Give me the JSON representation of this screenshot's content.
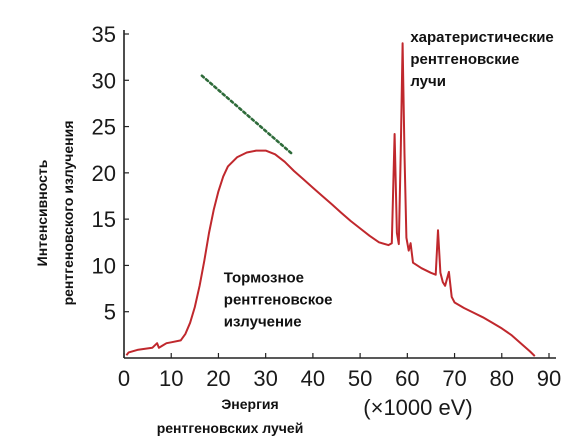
{
  "chart_data": {
    "type": "line",
    "xlabel_lines": [
      "Энергия",
      "рентгеновских лучей"
    ],
    "x_unit": "(×1000 eV)",
    "ylabel_lines": [
      "Интенсивность",
      "рентгеновского излучения"
    ],
    "xlim": [
      0,
      90
    ],
    "ylim": [
      0,
      35
    ],
    "x_ticks": [
      0,
      10,
      20,
      30,
      40,
      50,
      60,
      70,
      80,
      90
    ],
    "y_ticks": [
      5,
      10,
      15,
      20,
      25,
      30,
      35
    ],
    "grid": false,
    "colors": {
      "curve": "#c0282d",
      "dotted_line": "#2e6b3a",
      "axis": "#222222"
    },
    "annotations": [
      {
        "lines": [
          "харатеристические",
          "рентгеновские",
          "лучи"
        ],
        "anchor_x": 60,
        "anchor_y": 35
      },
      {
        "lines": [
          "Тормозное",
          "рентгеновское",
          "излучение"
        ],
        "anchor_x": 20.5,
        "anchor_y": 9
      }
    ],
    "series": [
      {
        "points": [
          [
            0.5,
            0.3
          ],
          [
            1,
            0.6
          ],
          [
            3,
            0.9
          ],
          [
            6,
            1.1
          ],
          [
            7,
            1.6
          ],
          [
            7.4,
            1.1
          ],
          [
            8,
            1.3
          ],
          [
            9,
            1.6
          ],
          [
            10,
            1.7
          ],
          [
            12,
            1.9
          ],
          [
            13,
            2.6
          ],
          [
            14,
            3.8
          ],
          [
            15,
            5.5
          ],
          [
            16,
            7.8
          ],
          [
            17,
            10.5
          ],
          [
            18,
            13.5
          ],
          [
            19,
            16.0
          ],
          [
            20,
            18.0
          ],
          [
            21,
            19.6
          ],
          [
            22,
            20.7
          ],
          [
            24,
            21.7
          ],
          [
            26,
            22.2
          ],
          [
            28,
            22.4
          ],
          [
            30,
            22.4
          ],
          [
            32,
            22.0
          ],
          [
            34,
            21.2
          ],
          [
            36,
            20.2
          ],
          [
            38,
            19.3
          ],
          [
            40,
            18.4
          ],
          [
            42,
            17.5
          ],
          [
            44,
            16.6
          ],
          [
            46,
            15.7
          ],
          [
            48,
            14.8
          ],
          [
            50,
            14.0
          ],
          [
            52,
            13.2
          ],
          [
            54,
            12.5
          ],
          [
            56,
            12.2
          ],
          [
            56.7,
            12.4
          ],
          [
            57.3,
            24.2
          ],
          [
            57.8,
            13.5
          ],
          [
            58.2,
            12.3
          ],
          [
            58.6,
            22.0
          ],
          [
            59.0,
            34.0
          ],
          [
            59.4,
            22.0
          ],
          [
            59.8,
            13.0
          ],
          [
            60.3,
            11.6
          ],
          [
            60.7,
            12.4
          ],
          [
            61.2,
            10.3
          ],
          [
            63,
            9.7
          ],
          [
            65,
            9.2
          ],
          [
            66.0,
            9.0
          ],
          [
            66.5,
            13.8
          ],
          [
            67.0,
            9.2
          ],
          [
            67.5,
            8.2
          ],
          [
            68,
            7.8
          ],
          [
            68.8,
            9.3
          ],
          [
            69.4,
            6.6
          ],
          [
            70,
            6.0
          ],
          [
            72,
            5.4
          ],
          [
            74,
            4.9
          ],
          [
            76,
            4.4
          ],
          [
            78,
            3.8
          ],
          [
            80,
            3.2
          ],
          [
            82,
            2.5
          ],
          [
            84,
            1.6
          ],
          [
            86,
            0.7
          ],
          [
            87,
            0.2
          ]
        ]
      },
      {
        "style": "dotted",
        "points": [
          [
            16.5,
            30.5
          ],
          [
            35.7,
            22.0
          ]
        ]
      }
    ]
  }
}
